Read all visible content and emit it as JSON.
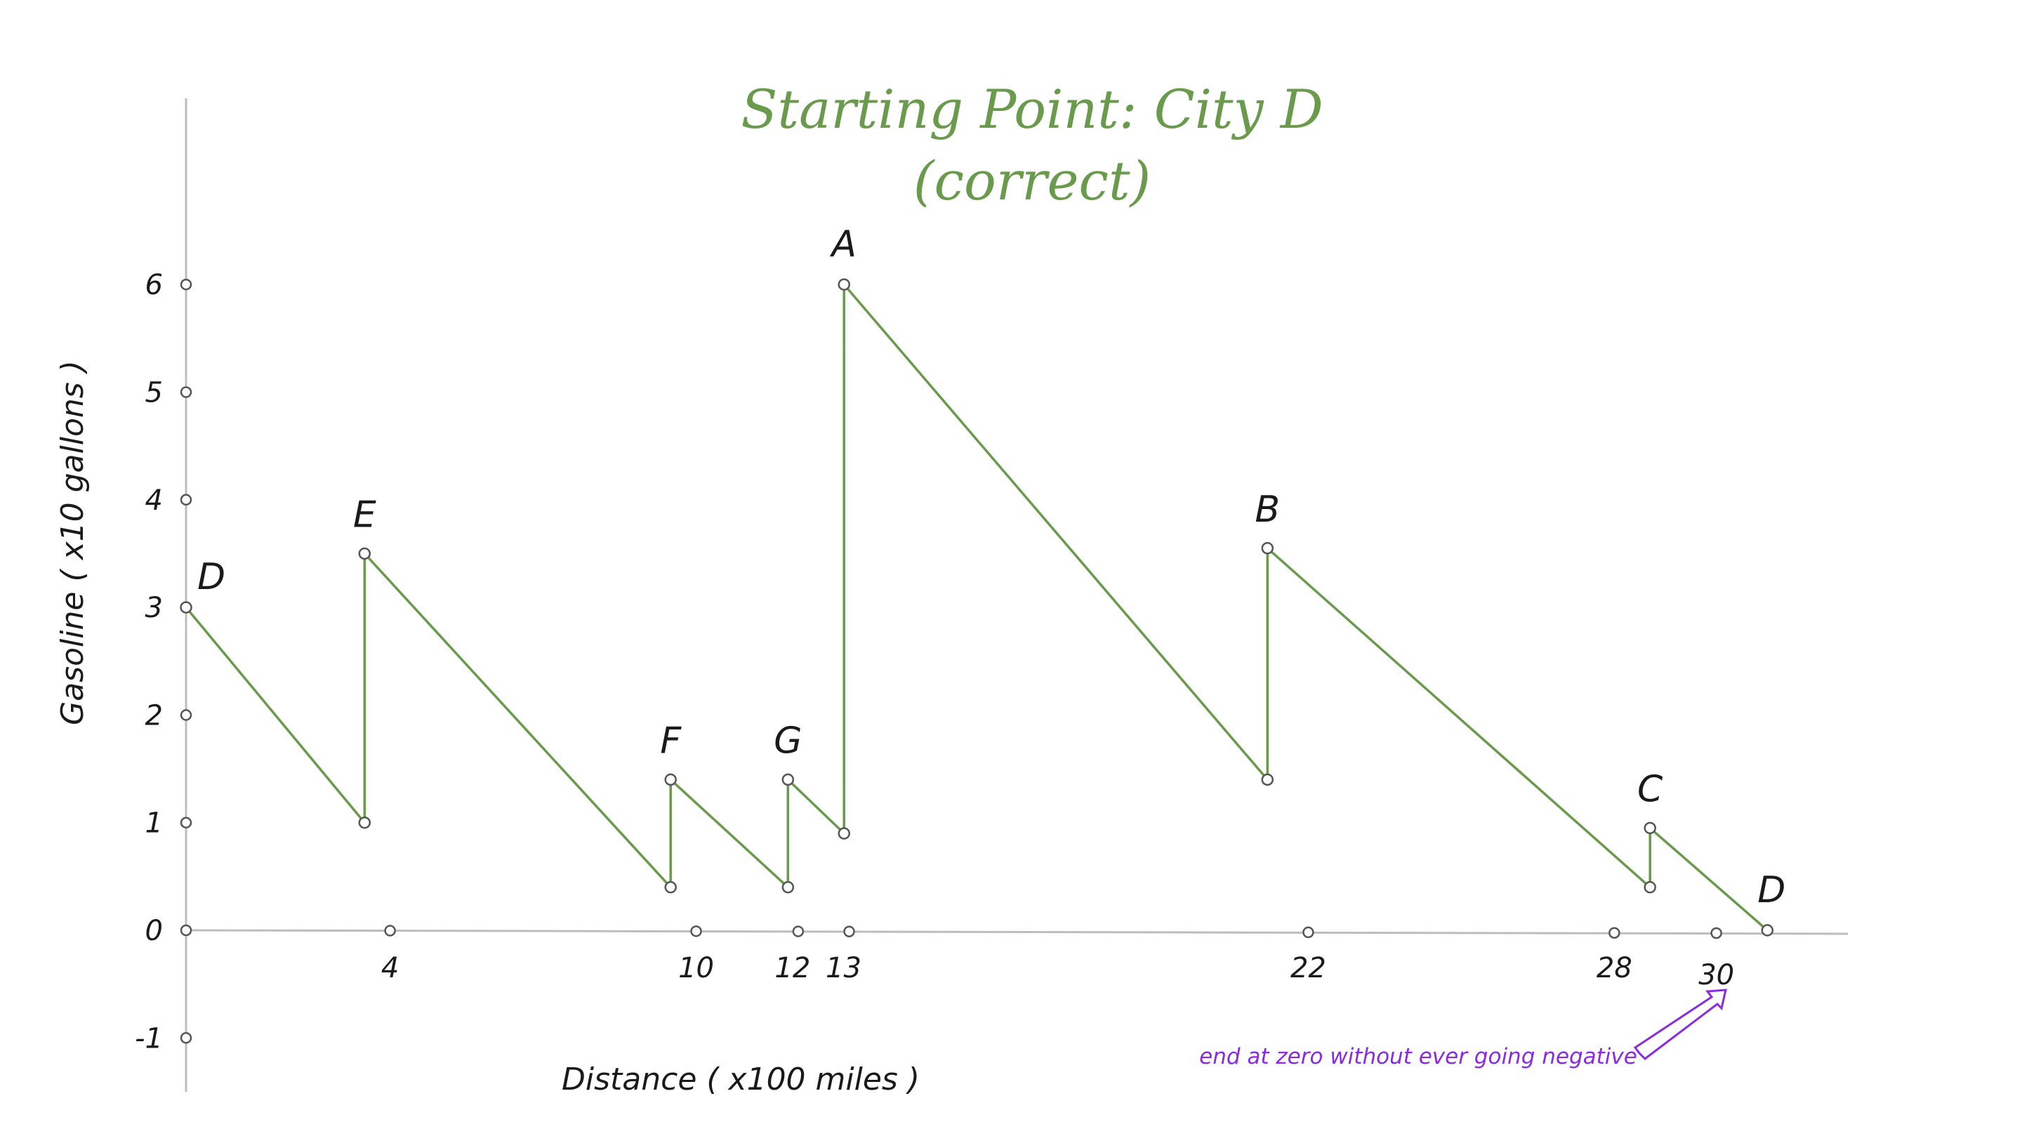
{
  "chart_data": {
    "type": "line",
    "title": "Starting Point: City D",
    "subtitle": "(correct)",
    "xlabel": "Distance ( x100 miles )",
    "ylabel": "Gasoline ( x10 gallons )",
    "xlim": [
      0,
      32
    ],
    "ylim": [
      -1,
      6
    ],
    "x_ticks": [
      4,
      10,
      12,
      13,
      22,
      28,
      30
    ],
    "y_ticks": [
      -1,
      0,
      1,
      2,
      3,
      4,
      5,
      6
    ],
    "grid": false,
    "line_color": "#6a9a4c",
    "axis_color": "#bdbdbd",
    "annotation_color": "#8a2be2",
    "series": [
      {
        "points": [
          {
            "x": 0,
            "y": 3
          },
          {
            "x": 3.5,
            "y": 1
          },
          {
            "x": 3.5,
            "y": 3.5
          },
          {
            "x": 9.5,
            "y": 0.4
          },
          {
            "x": 9.5,
            "y": 1.4
          },
          {
            "x": 11.8,
            "y": 0.4
          },
          {
            "x": 11.8,
            "y": 1.4
          },
          {
            "x": 12.9,
            "y": 0.9
          },
          {
            "x": 12.9,
            "y": 6
          },
          {
            "x": 21.2,
            "y": 1.4
          },
          {
            "x": 21.2,
            "y": 3.55
          },
          {
            "x": 28.7,
            "y": 0.4
          },
          {
            "x": 28.7,
            "y": 0.95
          },
          {
            "x": 31,
            "y": 0
          }
        ]
      }
    ],
    "city_labels": [
      {
        "label": "D",
        "x": 0,
        "y": 3
      },
      {
        "label": "E",
        "x": 3.5,
        "y": 3.5
      },
      {
        "label": "F",
        "x": 9.5,
        "y": 1.4
      },
      {
        "label": "G",
        "x": 11.8,
        "y": 1.4
      },
      {
        "label": "A",
        "x": 12.9,
        "y": 6
      },
      {
        "label": "B",
        "x": 21.2,
        "y": 3.55
      },
      {
        "label": "C",
        "x": 28.7,
        "y": 0.95
      },
      {
        "label": "D",
        "x": 31,
        "y": 0
      }
    ],
    "annotation": {
      "text": "end at zero without ever going negative",
      "icon": "arrow-icon"
    }
  }
}
